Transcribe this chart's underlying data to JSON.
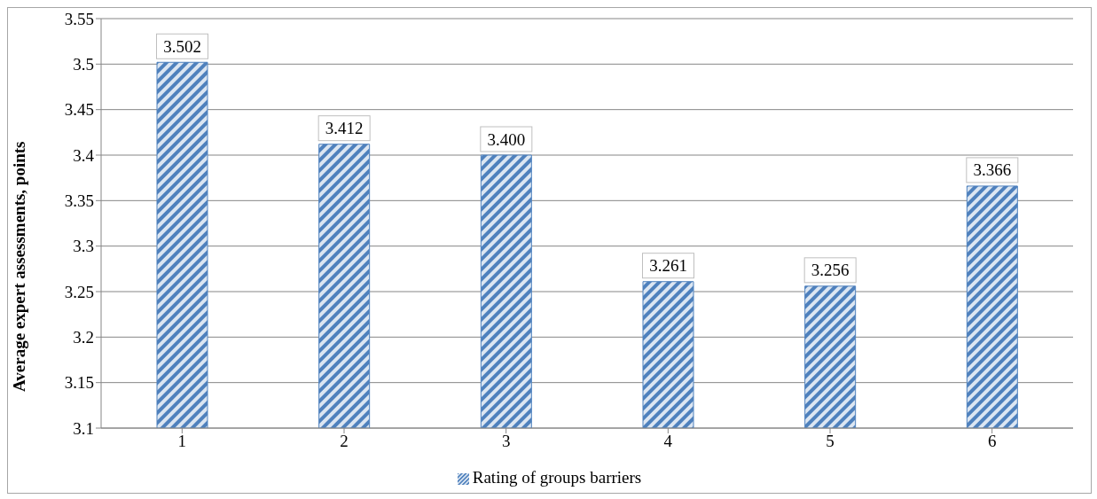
{
  "chart_data": {
    "type": "bar",
    "ylabel": "Average expert assessments, points",
    "categories": [
      "1",
      "2",
      "3",
      "4",
      "5",
      "6"
    ],
    "series": [
      {
        "name": "Rating of groups barriers",
        "color": "#4f81bd",
        "values": [
          3.502,
          3.412,
          3.4,
          3.261,
          3.256,
          3.366
        ],
        "value_labels": [
          "3.502",
          "3.412",
          "3.400",
          "3.261",
          "3.256",
          "3.366"
        ]
      }
    ],
    "ylim": [
      3.1,
      3.55
    ],
    "yticks": [
      3.1,
      3.15,
      3.2,
      3.25,
      3.3,
      3.35,
      3.4,
      3.45,
      3.5,
      3.55
    ],
    "grid": "y",
    "legend": "bottom"
  }
}
